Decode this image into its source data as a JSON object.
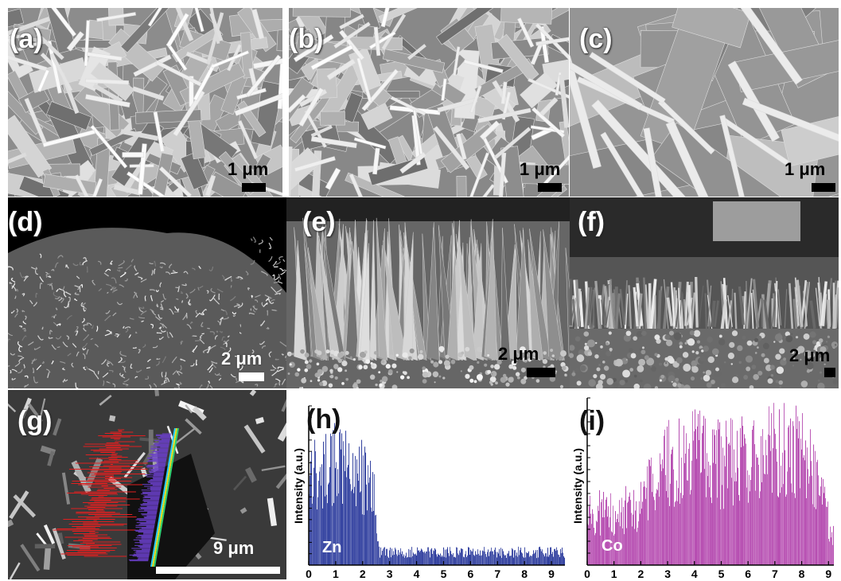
{
  "figure": {
    "panels": [
      {
        "label": "(a)",
        "scale_bar": "1 μm"
      },
      {
        "label": "(b)",
        "scale_bar": "1 μm"
      },
      {
        "label": "(c)",
        "scale_bar": "1 μm"
      },
      {
        "label": "(d)",
        "scale_bar": "2 μm"
      },
      {
        "label": "(e)",
        "scale_bar": "2 μm"
      },
      {
        "label": "(f)",
        "scale_bar": "2 μm"
      },
      {
        "label": "(g)",
        "scale_bar": "9 μm"
      },
      {
        "label": "(h)"
      },
      {
        "label": "(i)"
      }
    ],
    "colors": {
      "zn_bars": "#2f3e9e",
      "co_bars": "#b54bb0",
      "linescan_red": "#e02020"
    }
  },
  "chart_data": [
    {
      "type": "bar",
      "panel": "(h)",
      "ylabel": "Intensity (a.u.)",
      "series": [
        {
          "name": "Zn",
          "color": "#2f3e9e"
        }
      ],
      "xlim": [
        0,
        9.5
      ],
      "xticks": [
        "0",
        "1",
        "2",
        "3",
        "4",
        "5",
        "6",
        "7",
        "8",
        "9"
      ],
      "profile_x": [
        0,
        0.5,
        1.0,
        1.5,
        2.0,
        2.4,
        2.6,
        3.0,
        4.0,
        5.0,
        6.0,
        7.0,
        8.0,
        9.0,
        9.5
      ],
      "profile_y": [
        0.55,
        0.6,
        0.62,
        0.6,
        0.55,
        0.5,
        0.08,
        0.08,
        0.08,
        0.08,
        0.08,
        0.08,
        0.08,
        0.08,
        0.08
      ]
    },
    {
      "type": "bar",
      "panel": "(i)",
      "ylabel": "Intensity (a.u.)",
      "series": [
        {
          "name": "Co",
          "color": "#b54bb0"
        }
      ],
      "xlim": [
        0,
        9.2
      ],
      "xticks": [
        "0",
        "1",
        "2",
        "3",
        "4",
        "5",
        "6",
        "7",
        "8",
        "9"
      ],
      "profile_x": [
        0,
        1.0,
        2.0,
        2.5,
        3.0,
        4.0,
        5.0,
        6.0,
        7.0,
        8.0,
        8.5,
        9.0,
        9.2
      ],
      "profile_y": [
        0.3,
        0.32,
        0.35,
        0.5,
        0.6,
        0.65,
        0.6,
        0.62,
        0.68,
        0.7,
        0.55,
        0.25,
        0.2
      ]
    }
  ]
}
